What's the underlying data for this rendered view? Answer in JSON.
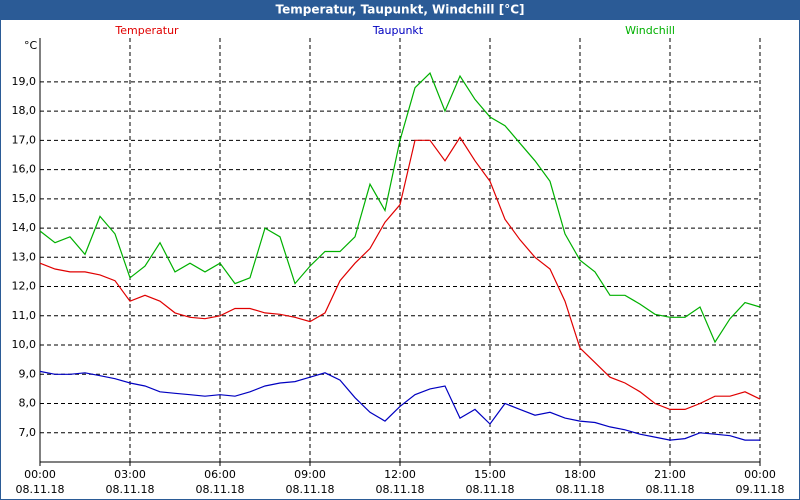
{
  "window_title": "Temperatur, Taupunkt, Windchill [°C]",
  "chart_data": {
    "type": "line",
    "y_unit_label": "°C",
    "x": [
      0,
      0.5,
      1,
      1.5,
      2,
      2.5,
      3,
      3.5,
      4,
      4.5,
      5,
      5.5,
      6,
      6.5,
      7,
      7.5,
      8,
      8.5,
      9,
      9.5,
      10,
      10.5,
      11,
      11.5,
      12,
      12.5,
      13,
      13.5,
      14,
      14.5,
      15,
      15.5,
      16,
      16.5,
      17,
      17.5,
      18,
      18.5,
      19,
      19.5,
      20,
      20.5,
      21,
      21.5,
      22,
      22.5,
      23,
      23.5,
      24
    ],
    "series": [
      {
        "name": "Temperatur",
        "color": "#e00000",
        "values": [
          12.8,
          12.6,
          12.5,
          12.5,
          12.4,
          12.2,
          11.5,
          11.7,
          11.5,
          11.1,
          10.95,
          10.9,
          11.0,
          11.25,
          11.25,
          11.1,
          11.05,
          10.95,
          10.8,
          11.1,
          12.2,
          12.8,
          13.3,
          14.2,
          14.8,
          17.0,
          17.0,
          16.3,
          17.1,
          16.3,
          15.6,
          14.3,
          13.6,
          13.0,
          12.6,
          11.5,
          9.9,
          9.4,
          8.9,
          8.7,
          8.4,
          8.0,
          7.8,
          7.8,
          8.0,
          8.25,
          8.25,
          8.4,
          8.15
        ]
      },
      {
        "name": "Taupunkt",
        "color": "#0000c0",
        "values": [
          9.1,
          9.0,
          9.0,
          9.05,
          8.95,
          8.85,
          8.7,
          8.6,
          8.4,
          8.35,
          8.3,
          8.25,
          8.3,
          8.25,
          8.4,
          8.6,
          8.7,
          8.75,
          8.9,
          9.05,
          8.8,
          8.2,
          7.7,
          7.4,
          7.9,
          8.3,
          8.5,
          8.6,
          7.5,
          7.8,
          7.3,
          8.0,
          7.8,
          7.6,
          7.7,
          7.5,
          7.4,
          7.35,
          7.2,
          7.1,
          6.95,
          6.85,
          6.75,
          6.8,
          7.0,
          6.95,
          6.9,
          6.75,
          6.75
        ]
      },
      {
        "name": "Windchill",
        "color": "#00b000",
        "values": [
          13.9,
          13.5,
          13.7,
          13.1,
          14.4,
          13.8,
          12.3,
          12.7,
          13.5,
          12.5,
          12.8,
          12.5,
          12.8,
          12.1,
          12.3,
          14.0,
          13.7,
          12.1,
          12.7,
          13.2,
          13.2,
          13.7,
          15.5,
          14.6,
          17.0,
          18.8,
          19.3,
          18.0,
          19.2,
          18.4,
          17.8,
          17.5,
          16.9,
          16.3,
          15.6,
          13.8,
          12.9,
          12.5,
          11.7,
          11.7,
          11.4,
          11.05,
          10.95,
          10.95,
          11.3,
          10.1,
          10.9,
          11.45,
          11.3
        ]
      }
    ],
    "xlim": [
      0,
      24
    ],
    "xticks": [
      {
        "value": 0,
        "label": "00:00"
      },
      {
        "value": 3,
        "label": "03:00"
      },
      {
        "value": 6,
        "label": "06:00"
      },
      {
        "value": 9,
        "label": "09:00"
      },
      {
        "value": 12,
        "label": "12:00"
      },
      {
        "value": 15,
        "label": "15:00"
      },
      {
        "value": 18,
        "label": "18:00"
      },
      {
        "value": 21,
        "label": "21:00"
      },
      {
        "value": 24,
        "label": "00:00"
      }
    ],
    "xtick_dates": [
      "08.11.18",
      "08.11.18",
      "08.11.18",
      "08.11.18",
      "08.11.18",
      "08.11.18",
      "08.11.18",
      "08.11.18",
      "09.11.18"
    ],
    "ylim": [
      6.0,
      20.5
    ],
    "yticks": [
      {
        "value": 7,
        "label": "7,0"
      },
      {
        "value": 8,
        "label": "8,0"
      },
      {
        "value": 9,
        "label": "9,0"
      },
      {
        "value": 10,
        "label": "10,0"
      },
      {
        "value": 11,
        "label": "11,0"
      },
      {
        "value": 12,
        "label": "12,0"
      },
      {
        "value": 13,
        "label": "13,0"
      },
      {
        "value": 14,
        "label": "14,0"
      },
      {
        "value": 15,
        "label": "15,0"
      },
      {
        "value": 16,
        "label": "16,0"
      },
      {
        "value": 17,
        "label": "17,0"
      },
      {
        "value": 18,
        "label": "18,0"
      },
      {
        "value": 19,
        "label": "19,0"
      }
    ],
    "grid": true
  }
}
